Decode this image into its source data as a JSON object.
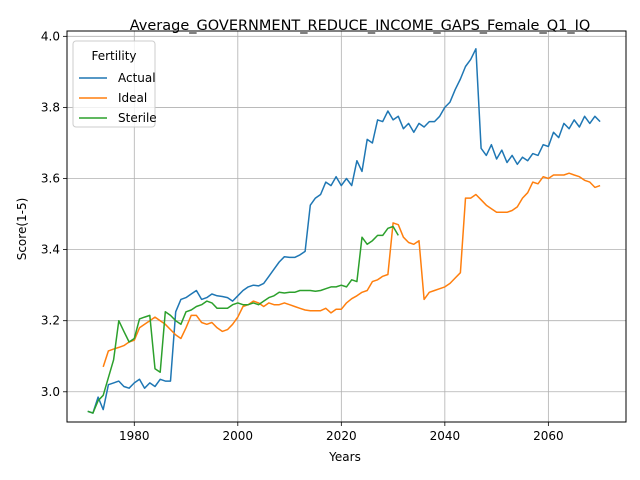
{
  "chart_data": {
    "type": "line",
    "title": "Average_GOVERNMENT_REDUCE_INCOME_GAPS_Female_Q1_IQ",
    "xlabel": "Years",
    "ylabel": "Score(1-5)",
    "xlim": [
      1967,
      2075
    ],
    "ylim": [
      2.915,
      4.015
    ],
    "xticks": [
      1980,
      2000,
      2020,
      2040,
      2060
    ],
    "yticks": [
      3.0,
      3.2,
      3.4,
      3.6,
      3.8,
      4.0
    ],
    "xtick_labels": [
      "1980",
      "2000",
      "2020",
      "2040",
      "2060"
    ],
    "ytick_labels": [
      "3.0",
      "3.2",
      "3.4",
      "3.6",
      "3.8",
      "4.0"
    ],
    "grid": true,
    "legend": {
      "title": "Fertility",
      "position": "top-left"
    },
    "series": [
      {
        "name": "Actual",
        "color": "#1f77b4",
        "x": [
          1971,
          1972,
          1973,
          1974,
          1975,
          1976,
          1977,
          1978,
          1979,
          1980,
          1981,
          1982,
          1983,
          1984,
          1985,
          1986,
          1987,
          1988,
          1989,
          1990,
          1991,
          1992,
          1993,
          1994,
          1995,
          1996,
          1997,
          1998,
          1999,
          2000,
          2001,
          2002,
          2003,
          2004,
          2005,
          2006,
          2007,
          2008,
          2009,
          2010,
          2011,
          2012,
          2013,
          2014,
          2015,
          2016,
          2017,
          2018,
          2019,
          2020,
          2021,
          2022,
          2023,
          2024,
          2025,
          2026,
          2027,
          2028,
          2029,
          2030,
          2031,
          2032,
          2033,
          2034,
          2035,
          2036,
          2037,
          2038,
          2039,
          2040,
          2041,
          2042,
          2043,
          2044,
          2045,
          2046,
          2047,
          2048,
          2049,
          2050,
          2051,
          2052,
          2053,
          2054,
          2055,
          2056,
          2057,
          2058,
          2059,
          2060,
          2061,
          2062,
          2063,
          2064,
          2065,
          2066,
          2067,
          2068,
          2069,
          2070
        ],
        "y": [
          2.945,
          2.94,
          2.985,
          2.95,
          3.02,
          3.025,
          3.03,
          3.015,
          3.01,
          3.025,
          3.035,
          3.01,
          3.025,
          3.015,
          3.035,
          3.03,
          3.03,
          3.225,
          3.26,
          3.265,
          3.275,
          3.285,
          3.26,
          3.265,
          3.275,
          3.27,
          3.268,
          3.265,
          3.255,
          3.27,
          3.285,
          3.295,
          3.3,
          3.298,
          3.305,
          3.325,
          3.345,
          3.365,
          3.38,
          3.378,
          3.378,
          3.385,
          3.395,
          3.525,
          3.545,
          3.555,
          3.59,
          3.58,
          3.605,
          3.58,
          3.6,
          3.58,
          3.65,
          3.62,
          3.71,
          3.7,
          3.765,
          3.76,
          3.79,
          3.765,
          3.775,
          3.74,
          3.755,
          3.73,
          3.755,
          3.745,
          3.76,
          3.76,
          3.775,
          3.8,
          3.815,
          3.85,
          3.88,
          3.915,
          3.935,
          3.965,
          3.685,
          3.665,
          3.695,
          3.655,
          3.68,
          3.645,
          3.665,
          3.64,
          3.66,
          3.65,
          3.67,
          3.665,
          3.695,
          3.69,
          3.73,
          3.715,
          3.755,
          3.74,
          3.765,
          3.745,
          3.775,
          3.755,
          3.775,
          3.76
        ]
      },
      {
        "name": "Ideal",
        "color": "#ff7f0e",
        "x": [
          1974,
          1975,
          1976,
          1977,
          1978,
          1979,
          1980,
          1981,
          1982,
          1983,
          1984,
          1985,
          1986,
          1987,
          1988,
          1989,
          1990,
          1991,
          1992,
          1993,
          1994,
          1995,
          1996,
          1997,
          1998,
          1999,
          2000,
          2001,
          2002,
          2003,
          2004,
          2005,
          2006,
          2007,
          2008,
          2009,
          2010,
          2011,
          2012,
          2013,
          2014,
          2015,
          2016,
          2017,
          2018,
          2019,
          2020,
          2021,
          2022,
          2023,
          2024,
          2025,
          2026,
          2027,
          2028,
          2029,
          2030,
          2031,
          2032,
          2033,
          2034,
          2035,
          2036,
          2037,
          2038,
          2039,
          2040,
          2041,
          2042,
          2043,
          2044,
          2045,
          2046,
          2047,
          2048,
          2049,
          2050,
          2051,
          2052,
          2053,
          2054,
          2055,
          2056,
          2057,
          2058,
          2059,
          2060,
          2061,
          2062,
          2063,
          2064,
          2065,
          2066,
          2067,
          2068,
          2069,
          2070
        ],
        "y": [
          3.07,
          3.115,
          3.12,
          3.125,
          3.13,
          3.14,
          3.145,
          3.18,
          3.19,
          3.2,
          3.21,
          3.2,
          3.19,
          3.175,
          3.16,
          3.15,
          3.18,
          3.215,
          3.215,
          3.195,
          3.19,
          3.195,
          3.18,
          3.17,
          3.175,
          3.19,
          3.21,
          3.24,
          3.245,
          3.255,
          3.25,
          3.24,
          3.25,
          3.245,
          3.245,
          3.25,
          3.245,
          3.24,
          3.235,
          3.23,
          3.228,
          3.228,
          3.228,
          3.235,
          3.222,
          3.232,
          3.232,
          3.25,
          3.262,
          3.27,
          3.28,
          3.285,
          3.31,
          3.315,
          3.325,
          3.33,
          3.475,
          3.47,
          3.435,
          3.42,
          3.415,
          3.425,
          3.26,
          3.28,
          3.285,
          3.29,
          3.295,
          3.305,
          3.32,
          3.335,
          3.545,
          3.545,
          3.555,
          3.54,
          3.525,
          3.515,
          3.505,
          3.505,
          3.505,
          3.51,
          3.52,
          3.545,
          3.56,
          3.59,
          3.585,
          3.605,
          3.6,
          3.61,
          3.61,
          3.61,
          3.615,
          3.61,
          3.605,
          3.595,
          3.59,
          3.575,
          3.58
        ]
      },
      {
        "name": "Sterile",
        "color": "#2ca02c",
        "x": [
          1971,
          1972,
          1973,
          1974,
          1975,
          1976,
          1977,
          1978,
          1979,
          1980,
          1981,
          1982,
          1983,
          1984,
          1985,
          1986,
          1987,
          1988,
          1989,
          1990,
          1991,
          1992,
          1993,
          1994,
          1995,
          1996,
          1997,
          1998,
          1999,
          2000,
          2001,
          2002,
          2003,
          2004,
          2005,
          2006,
          2007,
          2008,
          2009,
          2010,
          2011,
          2012,
          2013,
          2014,
          2015,
          2016,
          2017,
          2018,
          2019,
          2020,
          2021,
          2022,
          2023,
          2024,
          2025,
          2026,
          2027,
          2028,
          2029,
          2030,
          2031
        ],
        "y": [
          2.945,
          2.94,
          2.975,
          2.99,
          3.04,
          3.09,
          3.2,
          3.17,
          3.14,
          3.15,
          3.205,
          3.21,
          3.215,
          3.065,
          3.055,
          3.225,
          3.215,
          3.2,
          3.19,
          3.225,
          3.23,
          3.24,
          3.245,
          3.255,
          3.25,
          3.235,
          3.235,
          3.235,
          3.245,
          3.25,
          3.245,
          3.245,
          3.25,
          3.245,
          3.255,
          3.265,
          3.27,
          3.28,
          3.278,
          3.28,
          3.28,
          3.285,
          3.285,
          3.285,
          3.283,
          3.285,
          3.29,
          3.295,
          3.295,
          3.3,
          3.295,
          3.315,
          3.31,
          3.435,
          3.415,
          3.425,
          3.44,
          3.44,
          3.46,
          3.465,
          3.44
        ]
      }
    ]
  }
}
